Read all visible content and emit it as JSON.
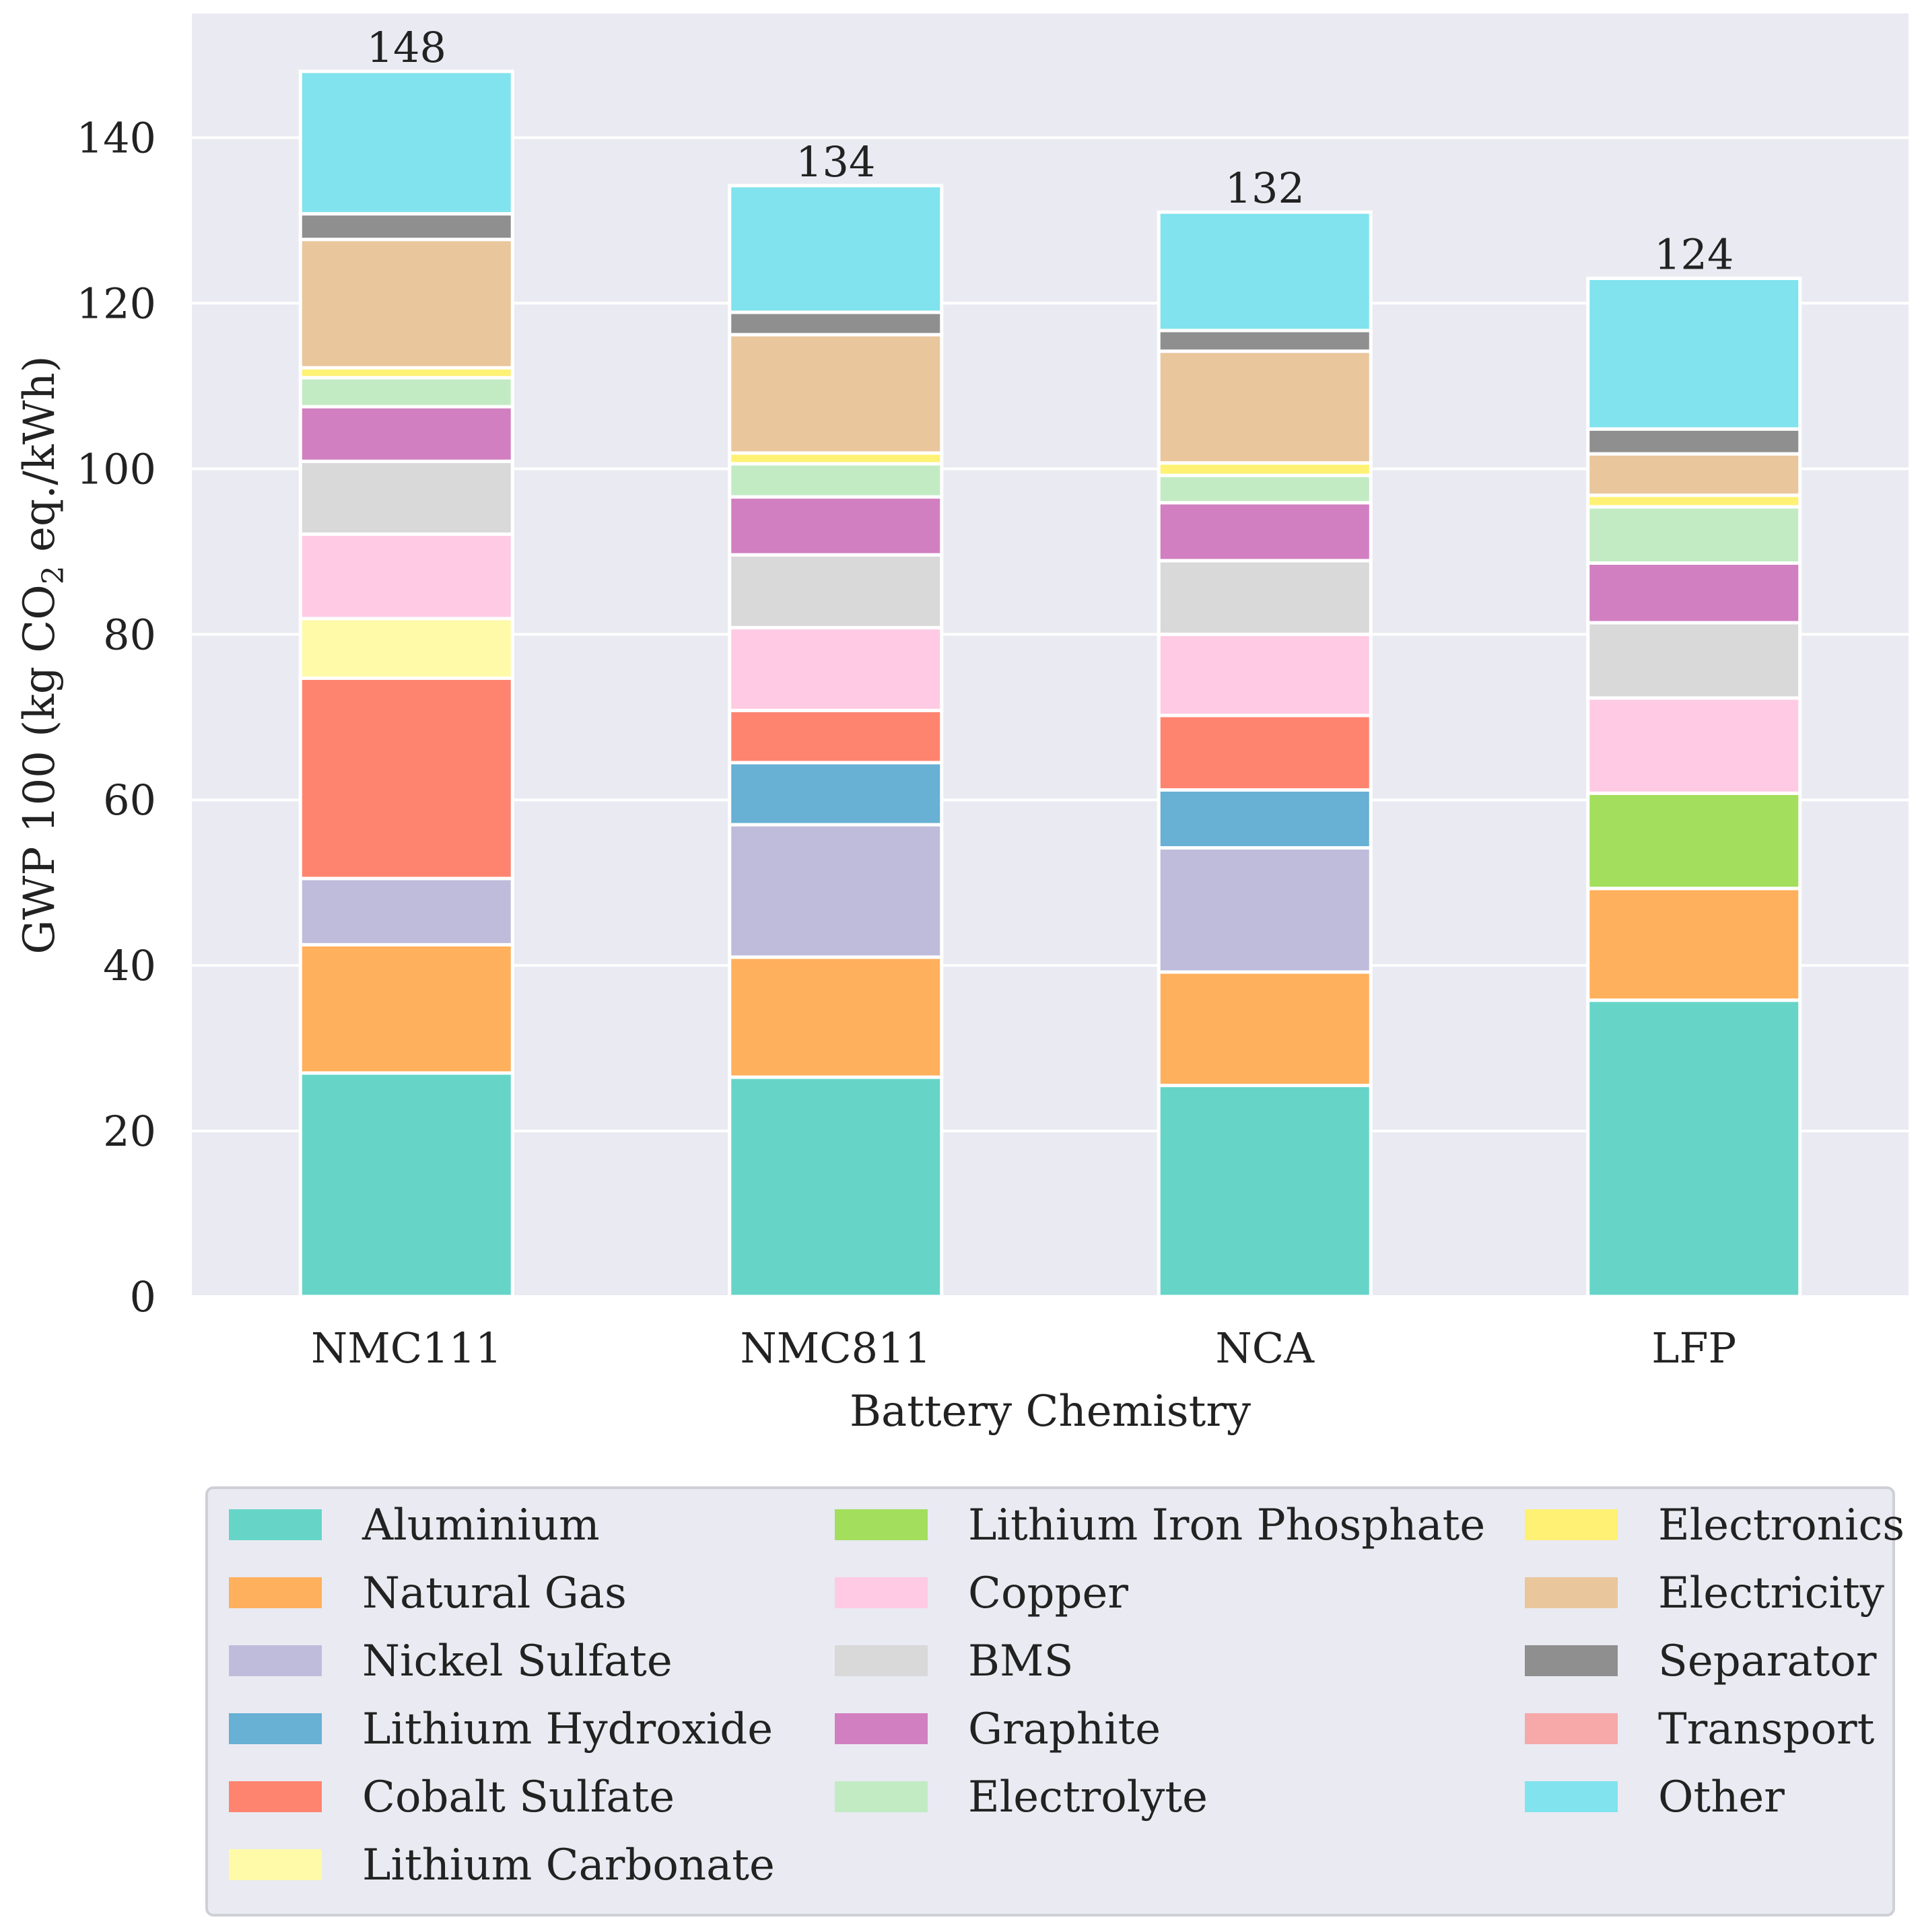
{
  "chart_data": {
    "type": "bar",
    "stacked": true,
    "xlabel": "Battery Chemistry",
    "ylabel_parts": [
      "GWP 100 (kg CO",
      "2",
      " eq./kWh)"
    ],
    "ylim": [
      0,
      155
    ],
    "yticks": [
      0,
      20,
      40,
      60,
      80,
      100,
      120,
      140
    ],
    "grid": true,
    "legend_position": "bottom",
    "categories": [
      "NMC111",
      "NMC811",
      "NCA",
      "LFP"
    ],
    "totals": [
      "148",
      "134",
      "132",
      "124"
    ],
    "series": [
      {
        "name": "Aluminium",
        "color": "#66d5c8",
        "values": [
          27,
          26.5,
          25.5,
          35.8
        ]
      },
      {
        "name": "Natural Gas",
        "color": "#ffb05c",
        "values": [
          15.5,
          14.5,
          13.7,
          13.5
        ]
      },
      {
        "name": "Nickel Sulfate",
        "color": "#bfbbdb",
        "values": [
          8,
          16,
          15,
          0
        ]
      },
      {
        "name": "Lithium Hydroxide",
        "color": "#68b0d4",
        "values": [
          0,
          7.5,
          7,
          0
        ]
      },
      {
        "name": "Cobalt Sulfate",
        "color": "#ff8470",
        "values": [
          24.2,
          6.3,
          9,
          0
        ]
      },
      {
        "name": "Lithium Carbonate",
        "color": "#fffaa8",
        "values": [
          7.2,
          0,
          0,
          0
        ]
      },
      {
        "name": "Lithium Iron Phosphate",
        "color": "#a3de5d",
        "values": [
          0,
          0,
          0,
          11.5
        ]
      },
      {
        "name": "Copper",
        "color": "#ffcae3",
        "values": [
          10.2,
          10,
          9.8,
          11.5
        ]
      },
      {
        "name": "BMS",
        "color": "#d9d9d9",
        "values": [
          8.8,
          8.8,
          8.9,
          9.1
        ]
      },
      {
        "name": "Graphite",
        "color": "#d17fc0",
        "values": [
          6.6,
          7,
          7,
          7.2
        ]
      },
      {
        "name": "Electrolyte",
        "color": "#c2ebc4",
        "values": [
          3.5,
          4,
          3.3,
          6.8
        ]
      },
      {
        "name": "Electronics",
        "color": "#fff173",
        "values": [
          1.2,
          1.3,
          1.5,
          1.4
        ]
      },
      {
        "name": "Electricity",
        "color": "#e9c69b",
        "values": [
          15.5,
          14.3,
          13.5,
          5
        ]
      },
      {
        "name": "Separator",
        "color": "#8f8f8f",
        "values": [
          3.1,
          2.7,
          2.5,
          3
        ]
      },
      {
        "name": "Transport",
        "color": "#f7a8a8",
        "values": [
          0,
          0,
          0,
          0
        ]
      },
      {
        "name": "Other",
        "color": "#80e3ee",
        "values": [
          17.2,
          15.3,
          14.3,
          18.2
        ]
      }
    ]
  }
}
